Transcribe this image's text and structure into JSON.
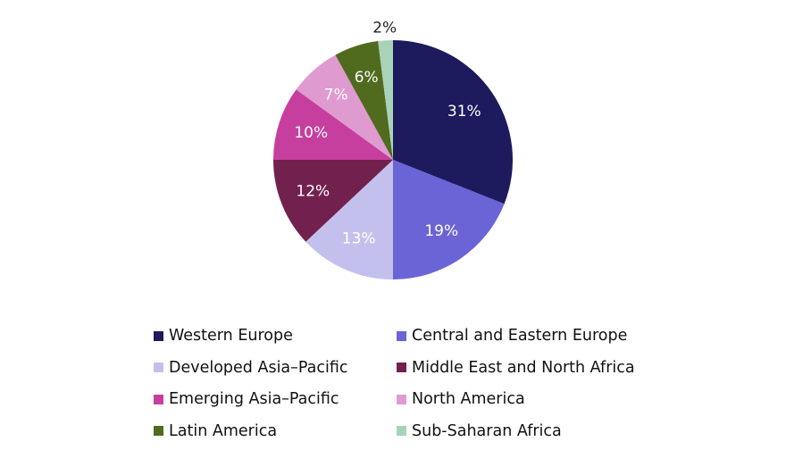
{
  "chart_data": {
    "type": "pie",
    "start_angle_deg": 0,
    "direction": "clockwise",
    "slices": [
      {
        "name": "Western Europe",
        "value": 31,
        "label": "31%",
        "color": "#1d1a5e",
        "label_color": "#ffffff"
      },
      {
        "name": "Central and Eastern Europe",
        "value": 19,
        "label": "19%",
        "color": "#6a64d6",
        "label_color": "#ffffff"
      },
      {
        "name": "Developed Asia–Pacific",
        "value": 13,
        "label": "13%",
        "color": "#c4c0ee",
        "label_color": "#ffffff"
      },
      {
        "name": "Middle East and North Africa",
        "value": 12,
        "label": "12%",
        "color": "#72214f",
        "label_color": "#ffffff"
      },
      {
        "name": "Emerging Asia–Pacific",
        "value": 10,
        "label": "10%",
        "color": "#c63f9e",
        "label_color": "#ffffff"
      },
      {
        "name": "North America",
        "value": 7,
        "label": "7%",
        "color": "#df9bd0",
        "label_color": "#ffffff"
      },
      {
        "name": "Latin America",
        "value": 6,
        "label": "6%",
        "color": "#516b1e",
        "label_color": "#ffffff"
      },
      {
        "name": "Sub-Saharan Africa",
        "value": 2,
        "label": "2%",
        "color": "#a9d3b8",
        "label_color": "#222222"
      }
    ],
    "legend": {
      "position": "bottom",
      "columns": 2
    }
  }
}
